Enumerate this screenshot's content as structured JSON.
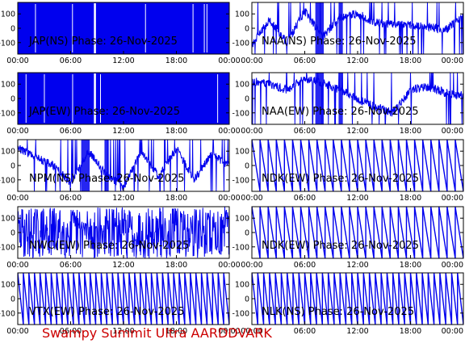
{
  "footer": {
    "credit": "Swampy Summit Ultra AARDDVARK"
  },
  "colors": {
    "trace": "#0000ee",
    "axis": "#000000",
    "background": "#ffffff",
    "credit": "#cc0000"
  },
  "chart_data": [
    {
      "type": "line",
      "title": "JAP(NS) Phase: 26-Nov-2025",
      "ylim": [
        -180,
        180
      ],
      "yticks": [
        "100",
        "0",
        "-100"
      ],
      "xticks": [
        "00:00",
        "06:00",
        "12:00",
        "18:00",
        "00:00"
      ],
      "xlim": [
        "00:00",
        "24:00"
      ],
      "pattern": "saturated",
      "x": [
        "00:00",
        "04:00",
        "08:00",
        "12:00",
        "16:00",
        "20:00",
        "24:00"
      ],
      "y": [
        -180,
        180,
        -180,
        180,
        -180,
        180,
        -180
      ]
    },
    {
      "type": "line",
      "title": "NAA(NS) Phase: 26-Nov-2025",
      "ylim": [
        -180,
        180
      ],
      "yticks": [
        "100",
        "0",
        "-100"
      ],
      "xticks": [
        "00:00",
        "06:00",
        "12:00",
        "18:00",
        "00:00"
      ],
      "xlim": [
        "00:00",
        "24:00"
      ],
      "pattern": "noisy-drift",
      "x": [
        "00:00",
        "02:00",
        "04:00",
        "06:00",
        "08:00",
        "10:00",
        "12:00",
        "14:00",
        "16:00",
        "18:00",
        "20:00",
        "22:00",
        "24:00"
      ],
      "y": [
        -120,
        60,
        -100,
        120,
        -60,
        80,
        100,
        40,
        30,
        20,
        10,
        -10,
        80
      ]
    },
    {
      "type": "line",
      "title": "JAP(EW) Phase: 26-Nov-2025",
      "ylim": [
        -180,
        180
      ],
      "yticks": [
        "100",
        "0",
        "-100"
      ],
      "xticks": [
        "00:00",
        "06:00",
        "12:00",
        "18:00",
        "00:00"
      ],
      "xlim": [
        "00:00",
        "24:00"
      ],
      "pattern": "saturated",
      "x": [
        "00:00",
        "04:00",
        "08:00",
        "12:00",
        "16:00",
        "20:00",
        "24:00"
      ],
      "y": [
        -180,
        180,
        -180,
        180,
        -180,
        180,
        -180
      ]
    },
    {
      "type": "line",
      "title": "NAA(EW) Phase: 26-Nov-2025",
      "ylim": [
        -180,
        180
      ],
      "yticks": [
        "100",
        "0",
        "-100"
      ],
      "xticks": [
        "00:00",
        "06:00",
        "12:00",
        "18:00",
        "00:00"
      ],
      "xlim": [
        "00:00",
        "24:00"
      ],
      "pattern": "noisy-drift",
      "x": [
        "00:00",
        "02:00",
        "04:00",
        "06:00",
        "08:00",
        "10:00",
        "12:00",
        "14:00",
        "16:00",
        "18:00",
        "20:00",
        "22:00",
        "24:00"
      ],
      "y": [
        120,
        100,
        60,
        140,
        110,
        60,
        0,
        -60,
        -100,
        60,
        80,
        40,
        20
      ]
    },
    {
      "type": "line",
      "title": "NPM(NS) Phase: 26-Nov-2025",
      "ylim": [
        -180,
        180
      ],
      "yticks": [
        "100",
        "0",
        "-100"
      ],
      "xticks": [
        "00:00",
        "06:00",
        "12:00",
        "18:00",
        "00:00"
      ],
      "xlim": [
        "00:00",
        "24:00"
      ],
      "pattern": "noisy-drift",
      "x": [
        "00:00",
        "02:00",
        "04:00",
        "06:00",
        "08:00",
        "10:00",
        "12:00",
        "14:00",
        "16:00",
        "18:00",
        "20:00",
        "22:00",
        "24:00"
      ],
      "y": [
        120,
        60,
        0,
        -120,
        100,
        -60,
        -150,
        100,
        -80,
        120,
        -100,
        80,
        0
      ]
    },
    {
      "type": "line",
      "title": "NDK(EW) Phase: 26-Nov-2025",
      "ylim": [
        -180,
        180
      ],
      "yticks": [
        "100",
        "0",
        "-100"
      ],
      "xticks": [
        "00:00",
        "06:00",
        "12:00",
        "18:00",
        "00:00"
      ],
      "xlim": [
        "00:00",
        "24:00"
      ],
      "pattern": "sawtooth",
      "wraps_per_day": 26,
      "x": [
        "00:00",
        "06:00",
        "12:00",
        "18:00",
        "24:00"
      ],
      "y": [
        150,
        -150,
        150,
        -150,
        150
      ]
    },
    {
      "type": "line",
      "title": "NWC(EW) Phase: 26-Nov-2025",
      "ylim": [
        -180,
        180
      ],
      "yticks": [
        "100",
        "0",
        "-100"
      ],
      "xticks": [
        "00:00",
        "06:00",
        "12:00",
        "18:00",
        "00:00"
      ],
      "xlim": [
        "00:00",
        "24:00"
      ],
      "pattern": "noise",
      "x": [
        "00:00",
        "06:00",
        "12:00",
        "18:00",
        "24:00"
      ],
      "y": [
        150,
        -150,
        150,
        -150,
        150
      ]
    },
    {
      "type": "line",
      "title": "NDK(EW) Phase: 26-Nov-2025",
      "ylim": [
        -180,
        180
      ],
      "yticks": [
        "100",
        "0",
        "-100"
      ],
      "xticks": [
        "00:00",
        "06:00",
        "12:00",
        "18:00",
        "00:00"
      ],
      "xlim": [
        "00:00",
        "24:00"
      ],
      "pattern": "sawtooth",
      "wraps_per_day": 26,
      "x": [
        "00:00",
        "06:00",
        "12:00",
        "18:00",
        "24:00"
      ],
      "y": [
        150,
        -150,
        150,
        -150,
        150
      ]
    },
    {
      "type": "line",
      "title": "VTX(EW) Phase: 26-Nov-2025",
      "ylim": [
        -180,
        180
      ],
      "yticks": [
        "100",
        "0",
        "-100"
      ],
      "xticks": [
        "00:00",
        "06:00",
        "12:00",
        "18:00",
        "00:00"
      ],
      "xlim": [
        "00:00",
        "24:00"
      ],
      "pattern": "sawtooth",
      "wraps_per_day": 38,
      "x": [
        "00:00",
        "06:00",
        "12:00",
        "18:00",
        "24:00"
      ],
      "y": [
        150,
        -150,
        150,
        -150,
        150
      ]
    },
    {
      "type": "line",
      "title": "NLK(NS) Phase: 26-Nov-2025",
      "ylim": [
        -180,
        180
      ],
      "yticks": [
        "100",
        "0",
        "-100"
      ],
      "xticks": [
        "00:00",
        "06:00",
        "12:00",
        "18:00",
        "00:00"
      ],
      "xlim": [
        "00:00",
        "24:00"
      ],
      "pattern": "sawtooth",
      "wraps_per_day": 36,
      "x": [
        "00:00",
        "06:00",
        "12:00",
        "18:00",
        "24:00"
      ],
      "y": [
        150,
        -150,
        150,
        -150,
        150
      ]
    }
  ]
}
